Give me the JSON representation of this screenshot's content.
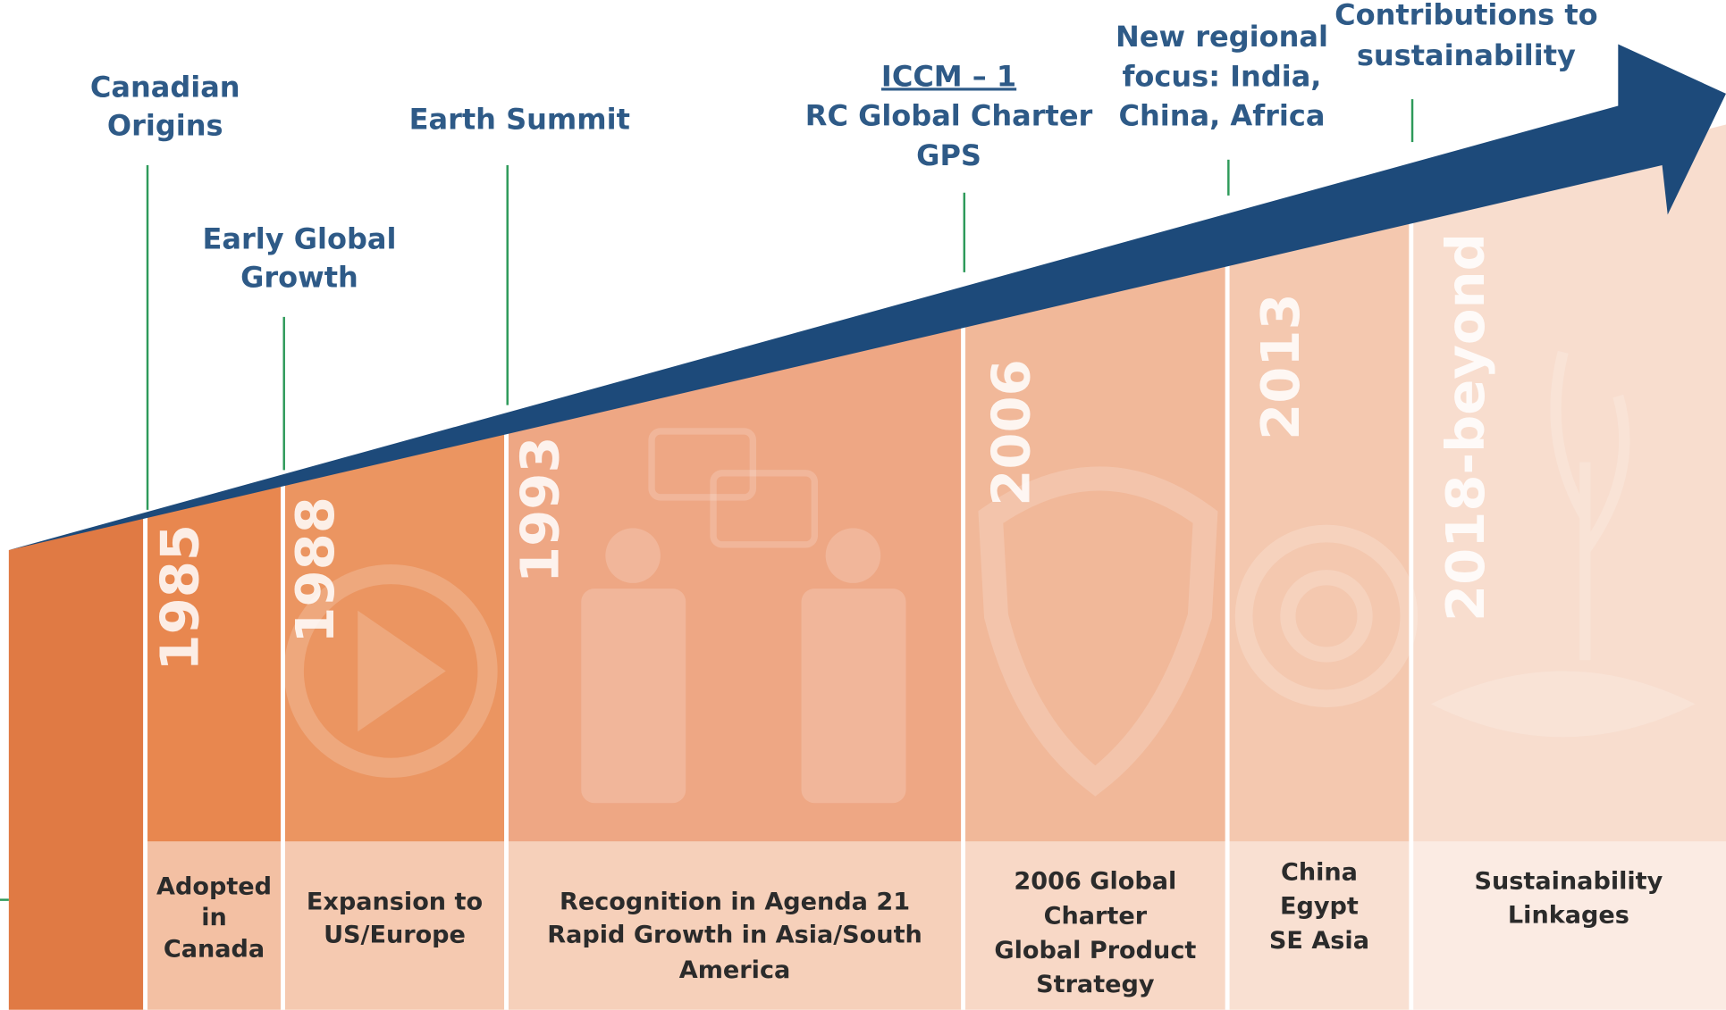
{
  "milestones": [
    {
      "label": [
        "Canadian",
        "Origins"
      ],
      "year": "1985",
      "description": [
        "Adopted",
        "in",
        "Canada"
      ]
    },
    {
      "label": [
        "Early Global",
        "Growth"
      ],
      "year": "1988",
      "description": [
        "Expansion to",
        "US/Europe"
      ]
    },
    {
      "label": [
        "Earth Summit"
      ],
      "year": "1993",
      "description": [
        "Recognition in Agenda 21",
        "Rapid Growth in Asia/South",
        "America"
      ]
    },
    {
      "label": [
        "ICCM – 1",
        "RC Global Charter",
        "GPS"
      ],
      "year": "2006",
      "description": [
        "2006 Global",
        "Charter",
        "Global Product",
        "Strategy"
      ]
    },
    {
      "label": [
        "New regional",
        "focus: India,",
        "China, Africa"
      ],
      "year": "2013",
      "description": [
        "China",
        "Egypt",
        "SE Asia"
      ]
    },
    {
      "label": [
        "Contributions to",
        "sustainability"
      ],
      "year": "2018-beyond",
      "description": [
        "Sustainability",
        "Linkages"
      ]
    }
  ]
}
